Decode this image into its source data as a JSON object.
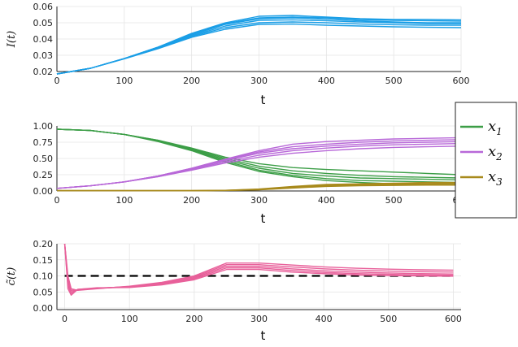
{
  "chart_data": [
    {
      "type": "line",
      "title": "",
      "xlabel": "t",
      "ylabel": "I(t)",
      "xlim": [
        0,
        600
      ],
      "ylim": [
        0.02,
        0.06
      ],
      "xticks": [
        0,
        100,
        200,
        300,
        400,
        500,
        600
      ],
      "yticks": [
        0.02,
        0.03,
        0.04,
        0.05,
        0.06
      ],
      "xtick_labels": [
        "0",
        "100",
        "200",
        "300",
        "400",
        "500",
        "600"
      ],
      "ytick_labels": [
        "0.02",
        "0.03",
        "0.04",
        "0.05",
        "0.06"
      ],
      "grid": true,
      "legend": "none",
      "colors": {
        "I": "#1a9ee6"
      },
      "series": [
        {
          "color_key": "I",
          "x": [
            0,
            50,
            100,
            150,
            200,
            250,
            300,
            350,
            400,
            450,
            500,
            550,
            600
          ],
          "y": [
            0.0185,
            0.022,
            0.028,
            0.035,
            0.0435,
            0.05,
            0.054,
            0.0545,
            0.0535,
            0.0525,
            0.052,
            0.052,
            0.0518
          ]
        },
        {
          "color_key": "I",
          "x": [
            0,
            50,
            100,
            150,
            200,
            250,
            300,
            350,
            400,
            450,
            500,
            550,
            600
          ],
          "y": [
            0.0185,
            0.022,
            0.028,
            0.035,
            0.043,
            0.0495,
            0.053,
            0.0535,
            0.053,
            0.052,
            0.0515,
            0.0512,
            0.051
          ]
        },
        {
          "color_key": "I",
          "x": [
            0,
            50,
            100,
            150,
            200,
            250,
            300,
            350,
            400,
            450,
            500,
            550,
            600
          ],
          "y": [
            0.0185,
            0.022,
            0.028,
            0.035,
            0.0425,
            0.049,
            0.0525,
            0.053,
            0.0522,
            0.0512,
            0.0505,
            0.05,
            0.05
          ]
        },
        {
          "color_key": "I",
          "x": [
            0,
            50,
            100,
            150,
            200,
            250,
            300,
            350,
            400,
            450,
            500,
            550,
            600
          ],
          "y": [
            0.0185,
            0.022,
            0.028,
            0.0348,
            0.042,
            0.048,
            0.0515,
            0.0518,
            0.0512,
            0.0505,
            0.05,
            0.0495,
            0.0495
          ]
        },
        {
          "color_key": "I",
          "x": [
            0,
            50,
            100,
            150,
            200,
            250,
            300,
            350,
            400,
            450,
            500,
            550,
            600
          ],
          "y": [
            0.0185,
            0.022,
            0.028,
            0.0345,
            0.0415,
            0.047,
            0.05,
            0.0505,
            0.05,
            0.0492,
            0.0488,
            0.0485,
            0.0485
          ]
        },
        {
          "color_key": "I",
          "x": [
            0,
            50,
            100,
            150,
            200,
            250,
            300,
            350,
            400,
            450,
            500,
            550,
            600
          ],
          "y": [
            0.0185,
            0.022,
            0.0278,
            0.034,
            0.041,
            0.046,
            0.049,
            0.0492,
            0.0485,
            0.048,
            0.0475,
            0.0472,
            0.047
          ]
        }
      ]
    },
    {
      "type": "line",
      "title": "",
      "xlabel": "t",
      "ylabel": "",
      "xlim": [
        0,
        600
      ],
      "ylim": [
        0,
        1.0
      ],
      "xticks": [
        0,
        100,
        200,
        300,
        400,
        500,
        600
      ],
      "yticks": [
        0,
        0.25,
        0.5,
        0.75,
        1.0
      ],
      "xtick_labels": [
        "0",
        "100",
        "200",
        "300",
        "400",
        "500",
        "600"
      ],
      "ytick_labels": [
        "0.00",
        "0.25",
        "0.50",
        "0.75",
        "1.00"
      ],
      "grid": true,
      "legend": "right-outside",
      "legend_entries": [
        {
          "key": "x1",
          "base": "x",
          "sub": "1",
          "color": "#3c9e47"
        },
        {
          "key": "x2",
          "base": "x",
          "sub": "2",
          "color": "#b868d8"
        },
        {
          "key": "x3",
          "base": "x",
          "sub": "3",
          "color": "#a88a1c"
        }
      ],
      "colors": {
        "x1": "#3c9e47",
        "x2": "#b868d8",
        "x3": "#a88a1c"
      },
      "series": [
        {
          "color_key": "x1",
          "x": [
            0,
            50,
            100,
            150,
            200,
            250,
            300,
            350,
            400,
            450,
            500,
            550,
            600
          ],
          "y": [
            0.95,
            0.93,
            0.87,
            0.78,
            0.66,
            0.52,
            0.42,
            0.36,
            0.33,
            0.31,
            0.29,
            0.27,
            0.25
          ]
        },
        {
          "color_key": "x1",
          "x": [
            0,
            50,
            100,
            150,
            200,
            250,
            300,
            350,
            400,
            450,
            500,
            550,
            600
          ],
          "y": [
            0.95,
            0.93,
            0.87,
            0.78,
            0.65,
            0.5,
            0.38,
            0.31,
            0.27,
            0.24,
            0.22,
            0.21,
            0.2
          ]
        },
        {
          "color_key": "x1",
          "x": [
            0,
            50,
            100,
            150,
            200,
            250,
            300,
            350,
            400,
            450,
            500,
            550,
            600
          ],
          "y": [
            0.95,
            0.93,
            0.87,
            0.77,
            0.64,
            0.48,
            0.35,
            0.27,
            0.23,
            0.2,
            0.19,
            0.18,
            0.17
          ]
        },
        {
          "color_key": "x1",
          "x": [
            0,
            50,
            100,
            150,
            200,
            250,
            300,
            350,
            400,
            450,
            500,
            550,
            600
          ],
          "y": [
            0.95,
            0.93,
            0.87,
            0.77,
            0.63,
            0.46,
            0.32,
            0.24,
            0.19,
            0.16,
            0.15,
            0.14,
            0.13
          ]
        },
        {
          "color_key": "x1",
          "x": [
            0,
            50,
            100,
            150,
            200,
            250,
            300,
            350,
            400,
            450,
            500,
            550,
            600
          ],
          "y": [
            0.95,
            0.93,
            0.87,
            0.76,
            0.62,
            0.44,
            0.3,
            0.22,
            0.16,
            0.13,
            0.11,
            0.1,
            0.1
          ]
        },
        {
          "color_key": "x2",
          "x": [
            0,
            50,
            100,
            150,
            200,
            250,
            300,
            350,
            400,
            450,
            500,
            550,
            600
          ],
          "y": [
            0.04,
            0.08,
            0.14,
            0.23,
            0.35,
            0.49,
            0.62,
            0.72,
            0.76,
            0.78,
            0.8,
            0.81,
            0.82
          ]
        },
        {
          "color_key": "x2",
          "x": [
            0,
            50,
            100,
            150,
            200,
            250,
            300,
            350,
            400,
            450,
            500,
            550,
            600
          ],
          "y": [
            0.04,
            0.08,
            0.14,
            0.23,
            0.35,
            0.48,
            0.6,
            0.68,
            0.72,
            0.75,
            0.77,
            0.78,
            0.79
          ]
        },
        {
          "color_key": "x2",
          "x": [
            0,
            50,
            100,
            150,
            200,
            250,
            300,
            350,
            400,
            450,
            500,
            550,
            600
          ],
          "y": [
            0.04,
            0.08,
            0.14,
            0.23,
            0.34,
            0.47,
            0.58,
            0.65,
            0.69,
            0.72,
            0.74,
            0.75,
            0.76
          ]
        },
        {
          "color_key": "x2",
          "x": [
            0,
            50,
            100,
            150,
            200,
            250,
            300,
            350,
            400,
            450,
            500,
            550,
            600
          ],
          "y": [
            0.04,
            0.08,
            0.14,
            0.22,
            0.33,
            0.45,
            0.55,
            0.62,
            0.66,
            0.69,
            0.71,
            0.72,
            0.73
          ]
        },
        {
          "color_key": "x2",
          "x": [
            0,
            50,
            100,
            150,
            200,
            250,
            300,
            350,
            400,
            450,
            500,
            550,
            600
          ],
          "y": [
            0.04,
            0.08,
            0.14,
            0.22,
            0.32,
            0.43,
            0.52,
            0.58,
            0.62,
            0.65,
            0.67,
            0.68,
            0.69
          ]
        },
        {
          "color_key": "x3",
          "x": [
            0,
            50,
            100,
            150,
            200,
            250,
            300,
            350,
            400,
            450,
            500,
            550,
            600
          ],
          "y": [
            0.005,
            0.005,
            0.005,
            0.005,
            0.005,
            0.01,
            0.03,
            0.07,
            0.1,
            0.11,
            0.12,
            0.13,
            0.13
          ]
        },
        {
          "color_key": "x3",
          "x": [
            0,
            50,
            100,
            150,
            200,
            250,
            300,
            350,
            400,
            450,
            500,
            550,
            600
          ],
          "y": [
            0.005,
            0.005,
            0.005,
            0.005,
            0.005,
            0.01,
            0.025,
            0.06,
            0.09,
            0.1,
            0.11,
            0.115,
            0.12
          ]
        },
        {
          "color_key": "x3",
          "x": [
            0,
            50,
            100,
            150,
            200,
            250,
            300,
            350,
            400,
            450,
            500,
            550,
            600
          ],
          "y": [
            0.005,
            0.005,
            0.005,
            0.005,
            0.005,
            0.008,
            0.02,
            0.05,
            0.08,
            0.09,
            0.1,
            0.1,
            0.1
          ]
        },
        {
          "color_key": "x3",
          "x": [
            0,
            50,
            100,
            150,
            200,
            250,
            300,
            350,
            400,
            450,
            500,
            550,
            600
          ],
          "y": [
            0.005,
            0.005,
            0.005,
            0.005,
            0.005,
            0.007,
            0.018,
            0.045,
            0.07,
            0.08,
            0.085,
            0.09,
            0.09
          ]
        }
      ]
    },
    {
      "type": "line",
      "title": "",
      "xlabel": "t",
      "ylabel": "c̃(t)",
      "xlim": [
        -12,
        612
      ],
      "ylim": [
        -0.005,
        0.2
      ],
      "xticks": [
        0,
        100,
        200,
        300,
        400,
        500,
        600
      ],
      "yticks": [
        0,
        0.05,
        0.1,
        0.15,
        0.2
      ],
      "xtick_labels": [
        "0",
        "100",
        "200",
        "300",
        "400",
        "500",
        "600"
      ],
      "ytick_labels": [
        "0.00",
        "0.05",
        "0.10",
        "0.15",
        "0.20"
      ],
      "grid": true,
      "legend": "none",
      "colors": {
        "c": "#e8609a",
        "ref": "#000000"
      },
      "reference_line": {
        "y": 0.1,
        "style": "dashed",
        "color_key": "ref"
      },
      "series": [
        {
          "color_key": "c",
          "x": [
            0,
            5,
            10,
            20,
            50,
            100,
            150,
            200,
            250,
            300,
            350,
            400,
            450,
            500,
            550,
            600
          ],
          "y": [
            0.2,
            0.1,
            0.06,
            0.055,
            0.06,
            0.068,
            0.08,
            0.1,
            0.14,
            0.14,
            0.134,
            0.128,
            0.124,
            0.121,
            0.119,
            0.118
          ]
        },
        {
          "color_key": "c",
          "x": [
            0,
            5,
            10,
            20,
            50,
            100,
            150,
            200,
            250,
            300,
            350,
            400,
            450,
            500,
            550,
            600
          ],
          "y": [
            0.2,
            0.09,
            0.055,
            0.056,
            0.061,
            0.067,
            0.078,
            0.097,
            0.135,
            0.135,
            0.128,
            0.122,
            0.118,
            0.115,
            0.113,
            0.112
          ]
        },
        {
          "color_key": "c",
          "x": [
            0,
            5,
            10,
            20,
            50,
            100,
            150,
            200,
            250,
            300,
            350,
            400,
            450,
            500,
            550,
            600
          ],
          "y": [
            0.2,
            0.08,
            0.05,
            0.057,
            0.062,
            0.066,
            0.076,
            0.094,
            0.13,
            0.13,
            0.122,
            0.116,
            0.112,
            0.109,
            0.107,
            0.106
          ]
        },
        {
          "color_key": "c",
          "x": [
            0,
            5,
            10,
            20,
            50,
            100,
            150,
            200,
            250,
            300,
            350,
            400,
            450,
            500,
            550,
            600
          ],
          "y": [
            0.2,
            0.07,
            0.045,
            0.058,
            0.062,
            0.065,
            0.074,
            0.091,
            0.125,
            0.125,
            0.117,
            0.111,
            0.107,
            0.105,
            0.103,
            0.102
          ]
        },
        {
          "color_key": "c",
          "x": [
            0,
            5,
            10,
            20,
            50,
            100,
            150,
            200,
            250,
            300,
            350,
            400,
            450,
            500,
            550,
            600
          ],
          "y": [
            0.2,
            0.06,
            0.04,
            0.058,
            0.063,
            0.064,
            0.072,
            0.088,
            0.12,
            0.12,
            0.112,
            0.107,
            0.103,
            0.101,
            0.1,
            0.099
          ]
        }
      ]
    }
  ]
}
